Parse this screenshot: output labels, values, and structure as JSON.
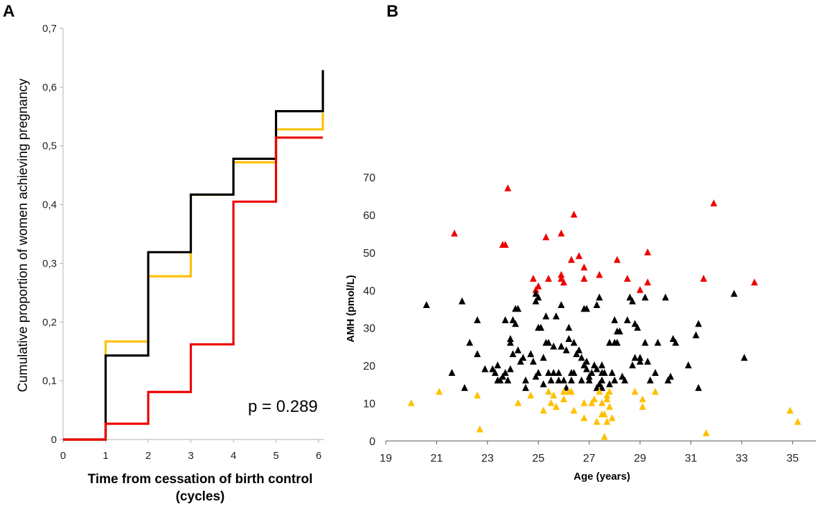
{
  "panels": {
    "a_letter": "A",
    "b_letter": "B"
  },
  "chart_data": [
    {
      "type": "line",
      "step": true,
      "title": "",
      "xlabel_line1": "Time from cessation of birth control",
      "xlabel_line2": "(cycles)",
      "ylabel": "Cumulative proportion of women achieving pregnancy",
      "xlim": [
        0,
        6
      ],
      "ylim": [
        0,
        0.7
      ],
      "xticks": [
        "0",
        "1",
        "2",
        "3",
        "4",
        "5",
        "6"
      ],
      "yticks": [
        "0",
        "0,1",
        "0,2",
        "0,3",
        "0,4",
        "0,5",
        "0,6",
        "0,7"
      ],
      "annotation": "p = 0.289",
      "series": [
        {
          "name": "yellow",
          "color": "#FFC000",
          "x": [
            0,
            1,
            2,
            3,
            4,
            5,
            6.1
          ],
          "values": [
            0,
            0.167,
            0.278,
            0.417,
            0.472,
            0.528,
            0.556
          ]
        },
        {
          "name": "black",
          "color": "#000000",
          "x": [
            0,
            1,
            2,
            3,
            4,
            5,
            6.1
          ],
          "values": [
            0,
            0.143,
            0.319,
            0.417,
            0.478,
            0.559,
            0.629
          ]
        },
        {
          "name": "red",
          "color": "#EE0000",
          "x": [
            0,
            1,
            2,
            3,
            4,
            5,
            6.1
          ],
          "values": [
            0,
            0.027,
            0.081,
            0.162,
            0.405,
            0.514,
            0.514
          ]
        }
      ]
    },
    {
      "type": "scatter",
      "title": "",
      "xlabel": "Age (years)",
      "ylabel": "AMH (pmol/L)",
      "xlim": [
        19,
        36
      ],
      "ylim": [
        0,
        70
      ],
      "xticks": [
        "19",
        "21",
        "23",
        "25",
        "27",
        "29",
        "31",
        "33",
        "35"
      ],
      "yticks": [
        "0",
        "10",
        "20",
        "30",
        "40",
        "50",
        "60",
        "70"
      ],
      "marker": "triangle",
      "series": [
        {
          "name": "red",
          "color": "#EE0000",
          "points": [
            [
              21.7,
              55
            ],
            [
              23.6,
              52
            ],
            [
              23.7,
              52
            ],
            [
              23.8,
              67
            ],
            [
              24.8,
              43
            ],
            [
              24.9,
              40
            ],
            [
              25.0,
              41
            ],
            [
              25.3,
              54
            ],
            [
              25.4,
              43
            ],
            [
              25.9,
              55
            ],
            [
              25.9,
              44
            ],
            [
              25.9,
              43
            ],
            [
              26.0,
              42
            ],
            [
              26.3,
              48
            ],
            [
              26.4,
              60
            ],
            [
              26.6,
              49
            ],
            [
              26.8,
              43
            ],
            [
              26.8,
              46
            ],
            [
              27.4,
              44
            ],
            [
              28.1,
              48
            ],
            [
              28.5,
              43
            ],
            [
              29.0,
              40
            ],
            [
              29.3,
              42
            ],
            [
              29.3,
              50
            ],
            [
              31.5,
              43
            ],
            [
              31.9,
              63
            ],
            [
              33.5,
              42
            ]
          ]
        },
        {
          "name": "black",
          "color": "#000000",
          "points": [
            [
              20.6,
              36
            ],
            [
              21.6,
              18
            ],
            [
              22.0,
              37
            ],
            [
              22.1,
              14
            ],
            [
              22.3,
              26
            ],
            [
              22.6,
              32
            ],
            [
              22.6,
              23
            ],
            [
              22.9,
              19
            ],
            [
              23.2,
              19
            ],
            [
              23.3,
              18
            ],
            [
              23.4,
              20
            ],
            [
              23.4,
              16
            ],
            [
              23.5,
              16
            ],
            [
              23.6,
              17
            ],
            [
              23.7,
              18
            ],
            [
              23.8,
              16
            ],
            [
              23.9,
              19
            ],
            [
              23.9,
              27
            ],
            [
              23.7,
              32
            ],
            [
              23.9,
              26
            ],
            [
              24.0,
              32
            ],
            [
              24.0,
              23
            ],
            [
              24.1,
              31
            ],
            [
              24.1,
              35
            ],
            [
              24.2,
              24
            ],
            [
              24.2,
              35
            ],
            [
              24.3,
              21
            ],
            [
              24.4,
              22
            ],
            [
              24.5,
              16
            ],
            [
              24.5,
              14
            ],
            [
              24.7,
              23
            ],
            [
              24.8,
              21
            ],
            [
              24.9,
              37
            ],
            [
              24.9,
              39
            ],
            [
              24.9,
              17
            ],
            [
              25.0,
              38
            ],
            [
              25.0,
              30
            ],
            [
              25.0,
              18
            ],
            [
              25.1,
              30
            ],
            [
              25.2,
              22
            ],
            [
              25.2,
              15
            ],
            [
              25.3,
              33
            ],
            [
              25.3,
              26
            ],
            [
              25.4,
              26
            ],
            [
              25.4,
              18
            ],
            [
              25.5,
              16
            ],
            [
              25.6,
              18
            ],
            [
              25.6,
              25
            ],
            [
              25.7,
              33
            ],
            [
              25.8,
              18
            ],
            [
              25.8,
              16
            ],
            [
              25.9,
              36
            ],
            [
              25.9,
              25
            ],
            [
              25.9,
              25
            ],
            [
              26.0,
              16
            ],
            [
              26.1,
              14
            ],
            [
              26.1,
              24
            ],
            [
              26.2,
              30
            ],
            [
              26.2,
              27
            ],
            [
              26.3,
              16
            ],
            [
              26.3,
              18
            ],
            [
              26.4,
              26
            ],
            [
              26.4,
              18
            ],
            [
              26.5,
              23
            ],
            [
              26.6,
              24
            ],
            [
              26.7,
              16
            ],
            [
              26.7,
              22
            ],
            [
              26.8,
              35
            ],
            [
              26.8,
              20
            ],
            [
              26.9,
              19
            ],
            [
              26.9,
              21
            ],
            [
              26.9,
              35
            ],
            [
              27.0,
              17
            ],
            [
              27.0,
              16
            ],
            [
              27.1,
              18
            ],
            [
              27.2,
              20
            ],
            [
              27.3,
              36
            ],
            [
              27.3,
              19
            ],
            [
              27.3,
              14
            ],
            [
              27.4,
              15
            ],
            [
              27.4,
              38
            ],
            [
              27.5,
              18
            ],
            [
              27.5,
              14
            ],
            [
              27.5,
              16
            ],
            [
              27.5,
              20
            ],
            [
              27.6,
              18
            ],
            [
              27.8,
              26
            ],
            [
              27.8,
              15
            ],
            [
              27.9,
              18
            ],
            [
              28.0,
              16
            ],
            [
              28.0,
              26
            ],
            [
              28.0,
              32
            ],
            [
              28.1,
              29
            ],
            [
              28.1,
              26
            ],
            [
              28.2,
              29
            ],
            [
              28.3,
              17
            ],
            [
              28.4,
              16
            ],
            [
              28.5,
              32
            ],
            [
              28.6,
              38
            ],
            [
              28.7,
              20
            ],
            [
              28.7,
              37
            ],
            [
              28.8,
              31
            ],
            [
              28.8,
              22
            ],
            [
              28.9,
              30
            ],
            [
              29.0,
              21
            ],
            [
              29.0,
              22
            ],
            [
              29.2,
              26
            ],
            [
              29.2,
              38
            ],
            [
              29.3,
              21
            ],
            [
              29.4,
              16
            ],
            [
              29.6,
              18
            ],
            [
              29.7,
              26
            ],
            [
              30.0,
              38
            ],
            [
              30.1,
              16
            ],
            [
              30.2,
              17
            ],
            [
              30.3,
              27
            ],
            [
              30.4,
              26
            ],
            [
              30.9,
              20
            ],
            [
              31.2,
              28
            ],
            [
              31.3,
              14
            ],
            [
              31.3,
              31
            ],
            [
              32.7,
              39
            ],
            [
              33.1,
              22
            ]
          ]
        },
        {
          "name": "yellow",
          "color": "#FFC000",
          "points": [
            [
              20.0,
              10
            ],
            [
              21.1,
              13
            ],
            [
              22.6,
              12
            ],
            [
              22.7,
              3
            ],
            [
              24.2,
              10
            ],
            [
              24.7,
              12
            ],
            [
              25.2,
              8
            ],
            [
              25.4,
              13
            ],
            [
              25.5,
              10
            ],
            [
              25.6,
              12
            ],
            [
              25.7,
              9
            ],
            [
              26.0,
              13
            ],
            [
              26.0,
              11
            ],
            [
              26.2,
              13
            ],
            [
              26.3,
              13
            ],
            [
              26.4,
              8
            ],
            [
              26.8,
              10
            ],
            [
              26.8,
              6
            ],
            [
              27.1,
              10
            ],
            [
              27.2,
              11
            ],
            [
              27.3,
              5
            ],
            [
              27.4,
              13
            ],
            [
              27.5,
              7
            ],
            [
              27.5,
              10
            ],
            [
              27.6,
              1
            ],
            [
              27.6,
              7
            ],
            [
              27.7,
              12
            ],
            [
              27.7,
              11
            ],
            [
              27.7,
              5
            ],
            [
              27.8,
              13
            ],
            [
              27.8,
              9
            ],
            [
              27.9,
              6
            ],
            [
              28.8,
              13
            ],
            [
              29.1,
              9
            ],
            [
              29.1,
              11
            ],
            [
              29.6,
              13
            ],
            [
              31.6,
              2
            ],
            [
              34.9,
              8
            ],
            [
              35.2,
              5
            ]
          ]
        }
      ]
    }
  ]
}
